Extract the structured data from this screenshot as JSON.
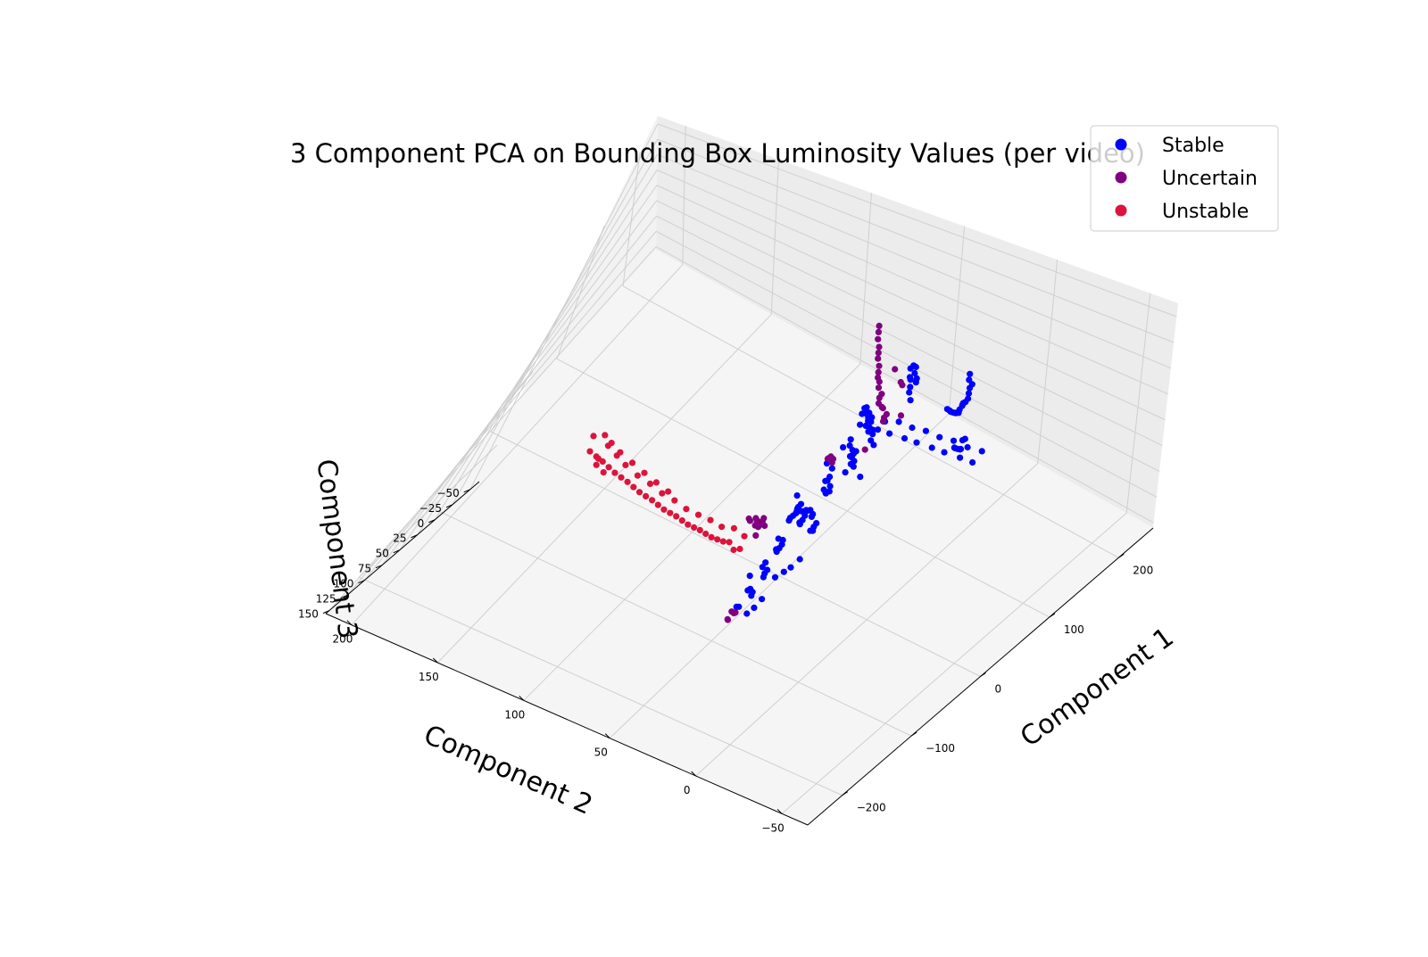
{
  "chart_data": {
    "type": "scatter",
    "title": "3 Component PCA on Bounding Box Luminosity Values (per video)",
    "xlabel": "Component 1",
    "ylabel": "Component 2",
    "zlabel": "Component 3",
    "x_ticks": [
      "−200",
      "−100",
      "0",
      "100",
      "200"
    ],
    "y_ticks": [
      "−50",
      "0",
      "50",
      "100",
      "150",
      "200"
    ],
    "z_ticks": [
      "−50",
      "−25",
      "0",
      "25",
      "50",
      "75",
      "100",
      "125",
      "150"
    ],
    "xlim": [
      -250,
      250
    ],
    "ylim": [
      -65,
      215
    ],
    "zlim": [
      -63,
      155
    ],
    "legend_position": "top-right",
    "grid": true,
    "series": [
      {
        "name": "Stable",
        "color": "#0000ff",
        "points": [
          [
            -150,
            -45,
            -40
          ],
          [
            -145,
            -42,
            -35
          ],
          [
            -140,
            -38,
            -42
          ],
          [
            -135,
            -40,
            -30
          ],
          [
            -130,
            -35,
            -38
          ],
          [
            -125,
            -30,
            -45
          ],
          [
            -120,
            -32,
            -36
          ],
          [
            -115,
            -28,
            -40
          ],
          [
            -110,
            -25,
            -32
          ],
          [
            -105,
            -22,
            -38
          ],
          [
            -100,
            -20,
            -42
          ],
          [
            -95,
            -18,
            -35
          ],
          [
            -90,
            -15,
            -30
          ],
          [
            -85,
            -12,
            -38
          ],
          [
            -80,
            -10,
            -40
          ],
          [
            -75,
            -8,
            -34
          ],
          [
            -70,
            -5,
            -36
          ],
          [
            -65,
            -2,
            -30
          ],
          [
            -140,
            -30,
            -20
          ],
          [
            -135,
            -28,
            -15
          ],
          [
            -130,
            -25,
            -22
          ],
          [
            -125,
            -22,
            -18
          ],
          [
            -120,
            -20,
            -12
          ],
          [
            -115,
            -18,
            -20
          ],
          [
            -110,
            -15,
            -14
          ],
          [
            -105,
            -12,
            -24
          ],
          [
            -100,
            -10,
            -18
          ],
          [
            -150,
            -20,
            -5
          ],
          [
            -145,
            -18,
            0
          ],
          [
            -140,
            -15,
            -8
          ],
          [
            -135,
            -12,
            5
          ],
          [
            -130,
            -10,
            -2
          ],
          [
            -125,
            -8,
            8
          ],
          [
            -120,
            -5,
            2
          ],
          [
            -115,
            -3,
            10
          ],
          [
            -160,
            -10,
            10
          ],
          [
            -155,
            -8,
            15
          ],
          [
            -150,
            -5,
            20
          ],
          [
            -145,
            -2,
            25
          ],
          [
            -140,
            0,
            18
          ],
          [
            -135,
            2,
            28
          ],
          [
            -130,
            5,
            22
          ],
          [
            -165,
            0,
            30
          ],
          [
            -160,
            2,
            35
          ],
          [
            -155,
            5,
            40
          ],
          [
            -150,
            8,
            45
          ],
          [
            -145,
            10,
            38
          ],
          [
            -140,
            12,
            48
          ],
          [
            -170,
            5,
            50
          ],
          [
            -165,
            8,
            55
          ],
          [
            -160,
            10,
            60
          ],
          [
            -155,
            12,
            52
          ],
          [
            -150,
            15,
            58
          ],
          [
            -175,
            10,
            65
          ],
          [
            -170,
            12,
            70
          ],
          [
            -165,
            15,
            68
          ],
          [
            -160,
            18,
            72
          ],
          [
            -155,
            20,
            64
          ],
          [
            -180,
            15,
            75
          ],
          [
            -175,
            18,
            78
          ],
          [
            -60,
            0,
            -20
          ],
          [
            -55,
            -5,
            -25
          ],
          [
            -50,
            -8,
            -15
          ],
          [
            -45,
            -10,
            -20
          ],
          [
            -40,
            -12,
            -10
          ],
          [
            -35,
            -15,
            -18
          ],
          [
            -30,
            -18,
            -5
          ],
          [
            -25,
            -20,
            -12
          ],
          [
            -20,
            -22,
            0
          ],
          [
            -15,
            -25,
            -8
          ],
          [
            -10,
            -28,
            5
          ],
          [
            -5,
            -30,
            -2
          ],
          [
            0,
            -32,
            10
          ],
          [
            5,
            -35,
            2
          ],
          [
            10,
            -38,
            15
          ],
          [
            15,
            -40,
            8
          ],
          [
            20,
            -42,
            20
          ],
          [
            25,
            -45,
            12
          ],
          [
            -80,
            10,
            5
          ],
          [
            -75,
            8,
            10
          ],
          [
            -70,
            5,
            -5
          ],
          [
            -65,
            3,
            15
          ],
          [
            -60,
            0,
            0
          ],
          [
            -55,
            -3,
            20
          ],
          [
            30,
            -20,
            -10
          ],
          [
            40,
            -18,
            -5
          ],
          [
            50,
            -15,
            0
          ],
          [
            60,
            -12,
            5
          ],
          [
            70,
            -10,
            10
          ],
          [
            80,
            -8,
            15
          ],
          [
            90,
            -5,
            20
          ],
          [
            100,
            -3,
            25
          ],
          [
            110,
            0,
            28
          ],
          [
            120,
            2,
            30
          ],
          [
            35,
            -25,
            20
          ],
          [
            45,
            -22,
            25
          ],
          [
            55,
            -20,
            30
          ],
          [
            65,
            -18,
            35
          ],
          [
            75,
            -15,
            40
          ],
          [
            85,
            -12,
            38
          ],
          [
            95,
            -10,
            42
          ],
          [
            130,
            5,
            35
          ],
          [
            140,
            8,
            40
          ],
          [
            150,
            10,
            45
          ],
          [
            160,
            12,
            48
          ],
          [
            170,
            15,
            50
          ],
          [
            180,
            18,
            52
          ],
          [
            190,
            20,
            55
          ],
          [
            200,
            25,
            60
          ],
          [
            210,
            28,
            62
          ],
          [
            -90,
            20,
            40
          ],
          [
            -85,
            22,
            45
          ],
          [
            -80,
            25,
            50
          ],
          [
            -75,
            28,
            55
          ],
          [
            -70,
            30,
            60
          ],
          [
            -100,
            15,
            30
          ],
          [
            -95,
            18,
            35
          ],
          [
            -120,
            10,
            25
          ],
          [
            -115,
            12,
            30
          ],
          [
            -110,
            15,
            20
          ],
          [
            -60,
            20,
            55
          ],
          [
            -55,
            22,
            60
          ],
          [
            -50,
            25,
            58
          ],
          [
            -45,
            28,
            62
          ],
          [
            -40,
            30,
            65
          ],
          [
            -35,
            32,
            68
          ],
          [
            0,
            -10,
            -40
          ],
          [
            5,
            -8,
            -35
          ],
          [
            10,
            -5,
            -45
          ],
          [
            15,
            -3,
            -38
          ],
          [
            20,
            0,
            -42
          ],
          [
            25,
            3,
            -30
          ],
          [
            30,
            5,
            -35
          ],
          [
            -20,
            -15,
            -30
          ],
          [
            -15,
            -12,
            -38
          ],
          [
            -10,
            -10,
            -32
          ],
          [
            -5,
            -8,
            -40
          ],
          [
            -125,
            -5,
            30
          ],
          [
            -120,
            -2,
            35
          ],
          [
            -115,
            0,
            40
          ],
          [
            -110,
            2,
            42
          ],
          [
            -105,
            5,
            45
          ],
          [
            -130,
            0,
            55
          ],
          [
            -135,
            3,
            60
          ],
          [
            -140,
            5,
            62
          ],
          [
            -145,
            8,
            65
          ],
          [
            -150,
            12,
            80
          ],
          [
            -155,
            14,
            85
          ],
          [
            -160,
            16,
            88
          ]
        ]
      },
      {
        "name": "Uncertain",
        "color": "#800080",
        "points": [
          [
            -170,
            20,
            85
          ],
          [
            -165,
            22,
            88
          ],
          [
            -160,
            25,
            90
          ],
          [
            -175,
            18,
            82
          ],
          [
            -180,
            20,
            86
          ],
          [
            -168,
            24,
            92
          ],
          [
            -120,
            30,
            40
          ],
          [
            -115,
            32,
            45
          ],
          [
            -110,
            35,
            50
          ],
          [
            -105,
            38,
            48
          ],
          [
            -100,
            40,
            55
          ],
          [
            -95,
            42,
            52
          ],
          [
            -125,
            28,
            35
          ],
          [
            -130,
            25,
            38
          ],
          [
            -118,
            34,
            42
          ],
          [
            -108,
            36,
            58
          ],
          [
            -102,
            44,
            50
          ],
          [
            -112,
            40,
            46
          ],
          [
            -70,
            10,
            5
          ],
          [
            -65,
            12,
            10
          ],
          [
            -60,
            15,
            8
          ],
          [
            -55,
            18,
            12
          ],
          [
            -50,
            20,
            15
          ],
          [
            0,
            15,
            25
          ],
          [
            100,
            40,
            45
          ],
          [
            110,
            45,
            50
          ],
          [
            120,
            48,
            52
          ],
          [
            130,
            50,
            55
          ],
          [
            140,
            55,
            58
          ],
          [
            150,
            58,
            60
          ],
          [
            160,
            62,
            65
          ],
          [
            170,
            65,
            68
          ],
          [
            180,
            68,
            70
          ],
          [
            190,
            72,
            72
          ],
          [
            200,
            75,
            75
          ],
          [
            210,
            78,
            78
          ],
          [
            220,
            82,
            80
          ],
          [
            230,
            85,
            82
          ],
          [
            240,
            88,
            85
          ],
          [
            125,
            38,
            35
          ],
          [
            135,
            42,
            40
          ],
          [
            155,
            52,
            45
          ],
          [
            -30,
            -5,
            -20
          ],
          [
            -25,
            -2,
            -15
          ],
          [
            -20,
            0,
            -10
          ],
          [
            -15,
            3,
            -18
          ],
          [
            40,
            10,
            10
          ]
        ]
      },
      {
        "name": "Unstable",
        "color": "#dc143c",
        "points": [
          [
            -120,
            40,
            65
          ],
          [
            -115,
            45,
            70
          ],
          [
            -110,
            50,
            68
          ],
          [
            -105,
            55,
            72
          ],
          [
            -100,
            60,
            75
          ],
          [
            -95,
            65,
            78
          ],
          [
            -90,
            70,
            80
          ],
          [
            -85,
            75,
            82
          ],
          [
            -80,
            80,
            85
          ],
          [
            -75,
            85,
            88
          ],
          [
            -70,
            90,
            90
          ],
          [
            -65,
            95,
            92
          ],
          [
            -60,
            100,
            95
          ],
          [
            -55,
            105,
            98
          ],
          [
            -50,
            110,
            100
          ],
          [
            -45,
            115,
            102
          ],
          [
            -40,
            120,
            105
          ],
          [
            -35,
            125,
            108
          ],
          [
            -30,
            130,
            110
          ],
          [
            -25,
            135,
            112
          ],
          [
            -20,
            140,
            115
          ],
          [
            -15,
            145,
            118
          ],
          [
            -10,
            150,
            120
          ],
          [
            -5,
            155,
            122
          ],
          [
            0,
            160,
            125
          ],
          [
            5,
            165,
            128
          ],
          [
            -110,
            42,
            60
          ],
          [
            -100,
            52,
            62
          ],
          [
            -90,
            62,
            70
          ],
          [
            -80,
            72,
            74
          ],
          [
            -70,
            82,
            80
          ],
          [
            -60,
            92,
            86
          ],
          [
            -50,
            102,
            90
          ],
          [
            -40,
            112,
            96
          ],
          [
            -30,
            122,
            100
          ],
          [
            -20,
            132,
            106
          ],
          [
            -10,
            142,
            110
          ],
          [
            0,
            150,
            114
          ],
          [
            10,
            158,
            118
          ],
          [
            -5,
            148,
            104
          ],
          [
            5,
            156,
            108
          ],
          [
            12,
            162,
            110
          ],
          [
            -25,
            128,
            96
          ],
          [
            -15,
            138,
            100
          ],
          [
            -35,
            118,
            92
          ],
          [
            -45,
            108,
            88
          ],
          [
            15,
            168,
            120
          ],
          [
            -8,
            152,
            130
          ],
          [
            -2,
            158,
            132
          ],
          [
            8,
            160,
            135
          ]
        ]
      }
    ]
  }
}
